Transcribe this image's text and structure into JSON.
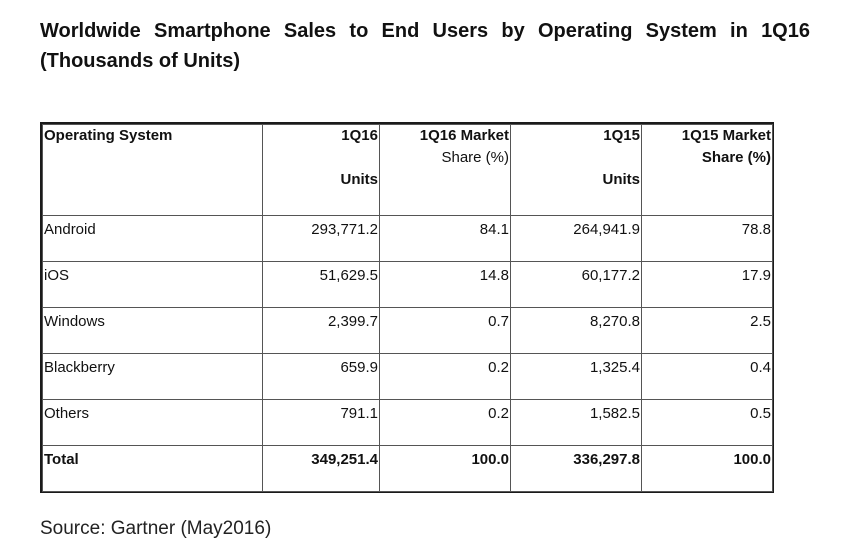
{
  "title": {
    "line1": "Worldwide Smartphone Sales to End Users by Operating System in 1Q16",
    "line2": "(Thousands of Units)"
  },
  "table": {
    "headers": {
      "os": "Operating System",
      "q16_units_top": "1Q16",
      "q16_units_bottom": "Units",
      "q16_share_line1": "1Q16 Market",
      "q16_share_line2": "Share (%)",
      "q15_units_top": "1Q15",
      "q15_units_bottom": "Units",
      "q15_share_line1": "1Q15 Market",
      "q15_share_line2": "Share (%)"
    },
    "rows": [
      {
        "os": "Android",
        "q16_units": "293,771.2",
        "q16_share": "84.1",
        "q15_units": "264,941.9",
        "q15_share": "78.8"
      },
      {
        "os": "iOS",
        "q16_units": "51,629.5",
        "q16_share": "14.8",
        "q15_units": "60,177.2",
        "q15_share": "17.9"
      },
      {
        "os": "Windows",
        "q16_units": "2,399.7",
        "q16_share": "0.7",
        "q15_units": "8,270.8",
        "q15_share": "2.5"
      },
      {
        "os": "Blackberry",
        "q16_units": "659.9",
        "q16_share": "0.2",
        "q15_units": "1,325.4",
        "q15_share": "0.4"
      },
      {
        "os": "Others",
        "q16_units": "791.1",
        "q16_share": "0.2",
        "q15_units": "1,582.5",
        "q15_share": "0.5"
      }
    ],
    "total": {
      "os": "Total",
      "q16_units": "349,251.4",
      "q16_share": "100.0",
      "q15_units": "336,297.8",
      "q15_share": "100.0"
    }
  },
  "source": "Source: Gartner (May2016)"
}
